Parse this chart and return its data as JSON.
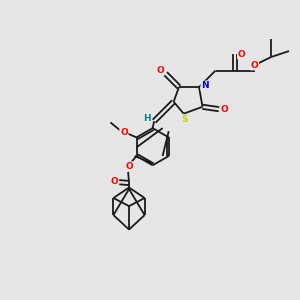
{
  "background_color": "#e6e6e6",
  "bond_color": "#1a1a1a",
  "atom_colors": {
    "O": "#ff0000",
    "N": "#0000cc",
    "S": "#cccc00",
    "H": "#008888",
    "C": "#1a1a1a"
  },
  "figsize": [
    3.0,
    3.0
  ],
  "dpi": 100
}
